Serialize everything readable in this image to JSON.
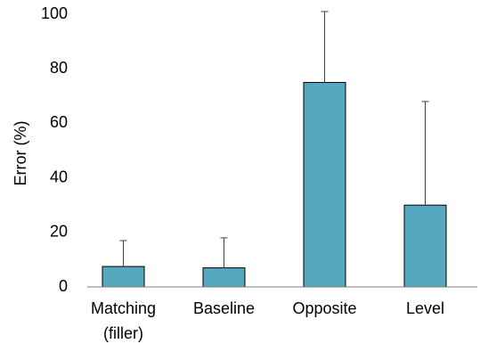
{
  "chart_data": {
    "type": "bar",
    "title": "",
    "xlabel": "",
    "ylabel": "Error (%)",
    "ylim": [
      0,
      100
    ],
    "yticks": [
      0,
      20,
      40,
      60,
      80,
      100
    ],
    "grid": false,
    "categories": [
      [
        "Matching",
        "(filler)"
      ],
      [
        "Baseline"
      ],
      [
        "Opposite"
      ],
      [
        "Level"
      ]
    ],
    "values": [
      7.5,
      7,
      75,
      30
    ],
    "error_upper": [
      17,
      18,
      101,
      68
    ],
    "colors": {
      "bar_fill": "#56a8bf",
      "bar_stroke": "#000000",
      "axis": "#7f7f7f",
      "error_bar": "#404040"
    }
  }
}
